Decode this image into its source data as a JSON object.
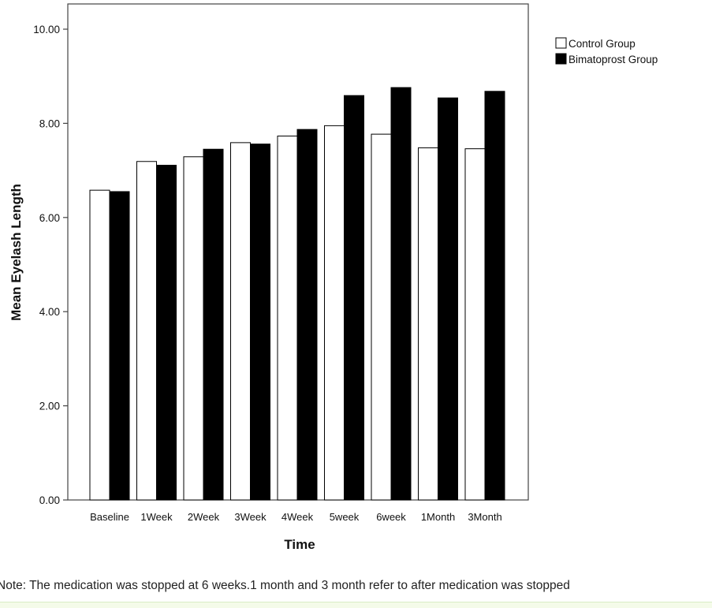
{
  "chart_data": {
    "type": "bar",
    "title": "",
    "xlabel": "Time",
    "ylabel": "Mean Eyelash Length",
    "ylim": [
      0,
      10.5
    ],
    "yticks": [
      "0.00",
      "2.00",
      "4.00",
      "6.00",
      "8.00",
      "10.00"
    ],
    "categories": [
      "Baseline",
      "1Week",
      "2Week",
      "3Week",
      "4Week",
      "5week",
      "6week",
      "1Month",
      "3Month"
    ],
    "series": [
      {
        "name": "Control Group",
        "color": "#ffffff",
        "values": [
          6.58,
          7.19,
          7.29,
          7.59,
          7.73,
          7.95,
          7.77,
          7.48,
          7.46
        ]
      },
      {
        "name": "Bimatoprost Group",
        "color": "#000000",
        "values": [
          6.55,
          7.11,
          7.45,
          7.56,
          7.87,
          8.59,
          8.76,
          8.54,
          8.68
        ]
      }
    ],
    "legend_position": "top-right",
    "grid": false
  },
  "note": "Note: The medication was stopped at 6 weeks.1 month and 3 month refer to after medication was stopped"
}
